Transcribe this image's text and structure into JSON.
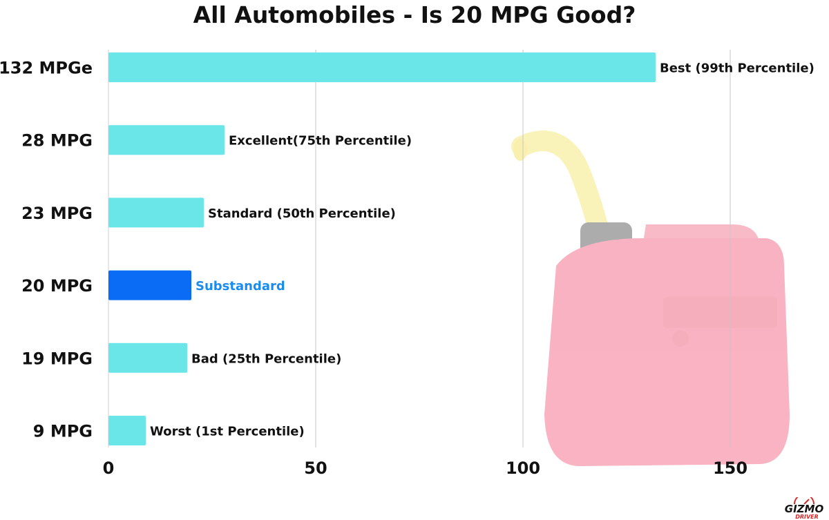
{
  "chart_data": {
    "type": "bar",
    "orientation": "horizontal",
    "title": "All Automobiles - Is 20 MPG Good?",
    "categories": [
      "132 MPGe",
      "28 MPG",
      "23 MPG",
      "20 MPG",
      "19 MPG",
      "9 MPG"
    ],
    "values": [
      132,
      28,
      23,
      20,
      19,
      9
    ],
    "data_labels": [
      "Best (99th Percentile)",
      "Excellent(75th Percentile)",
      "Standard (50th Percentile)",
      "Substandard",
      "Bad (25th Percentile)",
      "Worst (1st Percentile)"
    ],
    "highlight_index": 3,
    "xlim": [
      0,
      165
    ],
    "xticks": [
      0,
      50,
      100,
      150
    ],
    "grid": "vertical",
    "colors": {
      "bar": "#6ae5e8",
      "highlight_bar": "#0a6cf5",
      "highlight_label": "#1a8cf0",
      "text": "#111111",
      "grid": "#c6c6c6"
    }
  },
  "background_image": "gasoline-can-icon",
  "logo": {
    "text": "GIZMO",
    "sub": "DRIVER"
  }
}
